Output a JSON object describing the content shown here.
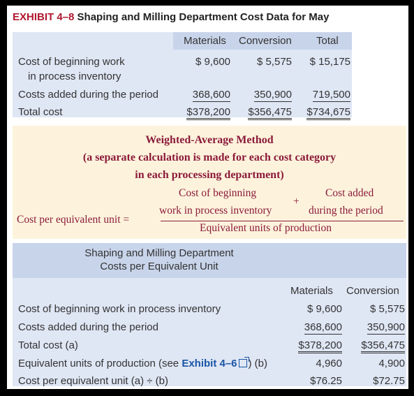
{
  "exhibit": {
    "number": "EXHIBIT 4–8",
    "title": "Shaping and Milling Department Cost Data for May"
  },
  "cost_data": {
    "headers": {
      "materials": "Materials",
      "conversion": "Conversion",
      "total": "Total"
    },
    "rows": [
      {
        "label1": "Cost of beginning work",
        "label2": "in process inventory",
        "materials": "$  9,600",
        "conversion": "$  5,575",
        "total": "$  15,175"
      },
      {
        "label1": "Costs added during the period",
        "materials": "368,600",
        "conversion": "350,900",
        "total": "719,500"
      },
      {
        "label1": "Total cost",
        "materials": "$378,200",
        "conversion": "$356,475",
        "total": "$734,675"
      }
    ]
  },
  "method": {
    "title": "Weighted-Average Method",
    "subtitle1": "(a separate calculation is made for each cost category",
    "subtitle2": "in each processing department)",
    "lhs": "Cost per equivalent unit =",
    "num1_line1": "Cost of beginning",
    "num1_line2": "work in process inventory",
    "plus": "+",
    "num2_line1": "Cost added",
    "num2_line2": "during the period",
    "denominator": "Equivalent units of production"
  },
  "per_unit": {
    "title1": "Shaping and Milling Department",
    "title2": "Costs per Equivalent Unit",
    "headers": {
      "materials": "Materials",
      "conversion": "Conversion"
    },
    "rows": [
      {
        "label": "Cost of beginning work in process inventory",
        "materials": "$  9,600",
        "conversion": "$  5,575"
      },
      {
        "label": "Costs added during the period",
        "materials": "368,600",
        "conversion": "350,900"
      },
      {
        "label": "Total cost (a)",
        "materials": "$378,200",
        "conversion": "$356,475"
      },
      {
        "label_pre": "Equivalent units of production (see ",
        "link": "Exhibit 4–6",
        "label_post": ") (b)",
        "materials": "4,960",
        "conversion": "4,900"
      },
      {
        "label": "Cost per equivalent unit (a) ÷ (b)",
        "materials": "$76.25",
        "conversion": "$72.75"
      }
    ],
    "link_icon": "external-link-icon"
  }
}
